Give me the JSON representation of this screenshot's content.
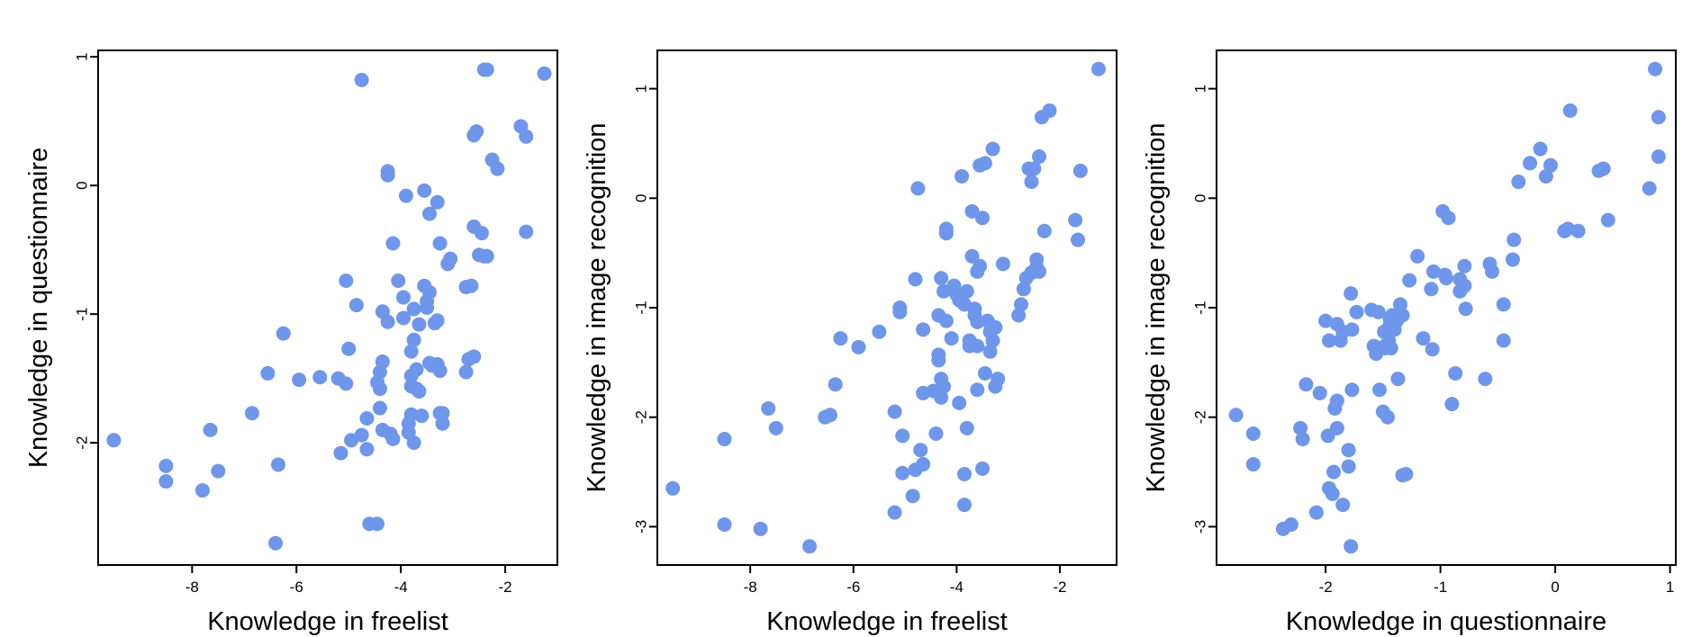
{
  "chart_data": [
    {
      "type": "scatter",
      "xlabel": "Knowledge in freelist",
      "ylabel": "Knowledge in questionnaire",
      "xlim": [
        -9.8,
        -1.0
      ],
      "ylim": [
        -2.95,
        1.05
      ],
      "xticks": [
        -8,
        -6,
        -4,
        -2
      ],
      "yticks": [
        -2,
        -1,
        0,
        1
      ],
      "point_color": "#6E96EB",
      "points": [
        [
          -9.5,
          -1.98
        ],
        [
          -8.5,
          -2.18
        ],
        [
          -8.5,
          -2.3
        ],
        [
          -7.8,
          -2.37
        ],
        [
          -7.65,
          -1.9
        ],
        [
          -7.5,
          -2.22
        ],
        [
          -6.85,
          -1.77
        ],
        [
          -6.55,
          -1.46
        ],
        [
          -6.4,
          -2.78
        ],
        [
          -6.35,
          -2.17
        ],
        [
          -6.25,
          -1.15
        ],
        [
          -5.95,
          -1.51
        ],
        [
          -5.55,
          -1.49
        ],
        [
          -5.2,
          -1.5
        ],
        [
          -5.15,
          -2.08
        ],
        [
          -5.05,
          -1.54
        ],
        [
          -5.05,
          -0.74
        ],
        [
          -5.0,
          -1.27
        ],
        [
          -4.95,
          -1.98
        ],
        [
          -4.85,
          -0.93
        ],
        [
          -4.75,
          -1.94
        ],
        [
          -4.75,
          0.82
        ],
        [
          -4.65,
          -2.05
        ],
        [
          -4.65,
          -1.81
        ],
        [
          -4.6,
          -2.63
        ],
        [
          -4.45,
          -2.63
        ],
        [
          -4.45,
          -1.53
        ],
        [
          -4.4,
          -1.45
        ],
        [
          -4.4,
          -1.73
        ],
        [
          -4.4,
          -1.58
        ],
        [
          -4.35,
          -0.98
        ],
        [
          -4.35,
          -1.37
        ],
        [
          -4.35,
          -1.9
        ],
        [
          -4.25,
          -1.06
        ],
        [
          -4.25,
          0.08
        ],
        [
          -4.25,
          0.11
        ],
        [
          -4.2,
          -1.93
        ],
        [
          -4.15,
          -0.45
        ],
        [
          -4.15,
          -1.97
        ],
        [
          -4.05,
          -0.74
        ],
        [
          -3.95,
          -1.03
        ],
        [
          -3.95,
          -0.87
        ],
        [
          -3.9,
          -0.08
        ],
        [
          -3.85,
          -1.85
        ],
        [
          -3.85,
          -1.92
        ],
        [
          -3.8,
          -1.78
        ],
        [
          -3.8,
          -1.29
        ],
        [
          -3.8,
          -1.56
        ],
        [
          -3.8,
          -1.48
        ],
        [
          -3.75,
          -0.96
        ],
        [
          -3.75,
          -1.2
        ],
        [
          -3.75,
          -2.0
        ],
        [
          -3.7,
          -1.43
        ],
        [
          -3.7,
          -1.58
        ],
        [
          -3.65,
          -1.6
        ],
        [
          -3.65,
          -1.08
        ],
        [
          -3.6,
          -1.79
        ],
        [
          -3.55,
          -0.04
        ],
        [
          -3.55,
          -0.78
        ],
        [
          -3.5,
          -0.9
        ],
        [
          -3.5,
          -0.95
        ],
        [
          -3.45,
          -1.38
        ],
        [
          -3.45,
          -0.83
        ],
        [
          -3.45,
          -0.22
        ],
        [
          -3.4,
          -1.4
        ],
        [
          -3.35,
          -1.07
        ],
        [
          -3.3,
          -1.05
        ],
        [
          -3.3,
          -0.13
        ],
        [
          -3.3,
          -1.39
        ],
        [
          -3.25,
          -0.45
        ],
        [
          -3.25,
          -1.44
        ],
        [
          -3.25,
          -1.77
        ],
        [
          -3.2,
          -1.85
        ],
        [
          -3.2,
          -1.77
        ],
        [
          -3.1,
          -0.61
        ],
        [
          -3.05,
          -0.57
        ],
        [
          -2.75,
          -0.79
        ],
        [
          -2.75,
          -1.45
        ],
        [
          -2.7,
          -1.35
        ],
        [
          -2.65,
          -0.78
        ],
        [
          -2.6,
          -1.33
        ],
        [
          -2.6,
          -0.32
        ],
        [
          -2.6,
          0.39
        ],
        [
          -2.55,
          0.42
        ],
        [
          -2.5,
          -0.54
        ],
        [
          -2.45,
          -0.37
        ],
        [
          -2.4,
          -0.55
        ],
        [
          -2.4,
          0.9
        ],
        [
          -2.35,
          -0.55
        ],
        [
          -2.35,
          0.9
        ],
        [
          -2.25,
          0.2
        ],
        [
          -2.15,
          0.13
        ],
        [
          -1.7,
          0.46
        ],
        [
          -1.6,
          0.38
        ],
        [
          -1.6,
          -0.36
        ],
        [
          -1.25,
          0.87
        ]
      ]
    },
    {
      "type": "scatter",
      "xlabel": "Knowledge in freelist",
      "ylabel": "Knowledge in image recognition",
      "xlim": [
        -9.8,
        -0.9
      ],
      "ylim": [
        -3.35,
        1.35
      ],
      "xticks": [
        -8,
        -6,
        -4,
        -2
      ],
      "yticks": [
        -3,
        -2,
        -1,
        0,
        1
      ],
      "point_color": "#6E96EB",
      "points": [
        [
          -9.5,
          -2.65
        ],
        [
          -8.5,
          -2.98
        ],
        [
          -8.5,
          -2.2
        ],
        [
          -7.8,
          -3.02
        ],
        [
          -7.65,
          -1.92
        ],
        [
          -7.5,
          -2.1
        ],
        [
          -6.85,
          -3.18
        ],
        [
          -6.55,
          -2.0
        ],
        [
          -6.45,
          -1.98
        ],
        [
          -6.35,
          -1.7
        ],
        [
          -6.25,
          -1.28
        ],
        [
          -5.9,
          -1.36
        ],
        [
          -5.5,
          -1.22
        ],
        [
          -5.2,
          -1.95
        ],
        [
          -5.2,
          -2.87
        ],
        [
          -5.1,
          -1.0
        ],
        [
          -5.1,
          -1.04
        ],
        [
          -5.05,
          -2.51
        ],
        [
          -5.05,
          -2.17
        ],
        [
          -4.85,
          -2.72
        ],
        [
          -4.8,
          -2.48
        ],
        [
          -4.8,
          -0.74
        ],
        [
          -4.75,
          0.09
        ],
        [
          -4.7,
          -2.3
        ],
        [
          -4.65,
          -2.43
        ],
        [
          -4.65,
          -1.78
        ],
        [
          -4.65,
          -1.2
        ],
        [
          -4.45,
          -1.76
        ],
        [
          -4.4,
          -2.15
        ],
        [
          -4.35,
          -1.07
        ],
        [
          -4.35,
          -1.43
        ],
        [
          -4.35,
          -1.48
        ],
        [
          -4.3,
          -1.65
        ],
        [
          -4.3,
          -1.82
        ],
        [
          -4.3,
          -0.73
        ],
        [
          -4.25,
          -1.72
        ],
        [
          -4.25,
          -0.85
        ],
        [
          -4.2,
          -0.28
        ],
        [
          -4.2,
          -0.32
        ],
        [
          -4.2,
          -1.12
        ],
        [
          -4.1,
          -1.28
        ],
        [
          -4.05,
          -0.8
        ],
        [
          -4.0,
          -0.88
        ],
        [
          -3.95,
          -1.87
        ],
        [
          -3.95,
          -0.93
        ],
        [
          -3.9,
          0.2
        ],
        [
          -3.85,
          -0.97
        ],
        [
          -3.85,
          -2.8
        ],
        [
          -3.85,
          -2.52
        ],
        [
          -3.8,
          -2.1
        ],
        [
          -3.8,
          -0.85
        ],
        [
          -3.75,
          -1.35
        ],
        [
          -3.75,
          -1.3
        ],
        [
          -3.7,
          -0.12
        ],
        [
          -3.7,
          -0.53
        ],
        [
          -3.65,
          -1.01
        ],
        [
          -3.65,
          -1.07
        ],
        [
          -3.6,
          -1.13
        ],
        [
          -3.6,
          -1.35
        ],
        [
          -3.6,
          -1.75
        ],
        [
          -3.6,
          -0.67
        ],
        [
          -3.55,
          0.3
        ],
        [
          -3.55,
          -0.62
        ],
        [
          -3.5,
          -2.47
        ],
        [
          -3.5,
          -0.18
        ],
        [
          -3.45,
          -1.6
        ],
        [
          -3.45,
          0.32
        ],
        [
          -3.4,
          -1.12
        ],
        [
          -3.35,
          -1.4
        ],
        [
          -3.35,
          -1.22
        ],
        [
          -3.3,
          -1.3
        ],
        [
          -3.3,
          0.45
        ],
        [
          -3.25,
          -1.18
        ],
        [
          -3.25,
          -1.72
        ],
        [
          -3.2,
          -1.65
        ],
        [
          -3.1,
          -0.6
        ],
        [
          -2.8,
          -1.07
        ],
        [
          -2.75,
          -0.97
        ],
        [
          -2.7,
          -0.83
        ],
        [
          -2.65,
          -0.73
        ],
        [
          -2.6,
          0.27
        ],
        [
          -2.55,
          0.15
        ],
        [
          -2.55,
          -0.68
        ],
        [
          -2.5,
          0.27
        ],
        [
          -2.45,
          -0.63
        ],
        [
          -2.45,
          -0.56
        ],
        [
          -2.4,
          -0.67
        ],
        [
          -2.4,
          0.38
        ],
        [
          -2.35,
          0.74
        ],
        [
          -2.3,
          -0.3
        ],
        [
          -2.2,
          0.8
        ],
        [
          -1.7,
          -0.2
        ],
        [
          -1.65,
          -0.38
        ],
        [
          -1.6,
          0.25
        ],
        [
          -1.25,
          1.18
        ]
      ]
    },
    {
      "type": "scatter",
      "xlabel": "Knowledge in questionnaire",
      "ylabel": "Knowledge in image recognition",
      "xlim": [
        -2.95,
        1.05
      ],
      "ylim": [
        -3.35,
        1.35
      ],
      "xticks": [
        -2,
        -1,
        0,
        1
      ],
      "yticks": [
        -3,
        -2,
        -1,
        0,
        1
      ],
      "point_color": "#6E96EB",
      "points": [
        [
          -2.78,
          -1.98
        ],
        [
          -2.63,
          -2.15
        ],
        [
          -2.63,
          -2.43
        ],
        [
          -2.37,
          -3.02
        ],
        [
          -2.3,
          -2.98
        ],
        [
          -2.22,
          -2.1
        ],
        [
          -2.2,
          -2.2
        ],
        [
          -2.17,
          -1.7
        ],
        [
          -2.08,
          -2.87
        ],
        [
          -2.05,
          -1.78
        ],
        [
          -2.0,
          -1.12
        ],
        [
          -1.98,
          -2.17
        ],
        [
          -1.97,
          -2.65
        ],
        [
          -1.97,
          -1.3
        ],
        [
          -1.94,
          -2.7
        ],
        [
          -1.93,
          -2.5
        ],
        [
          -1.92,
          -1.92
        ],
        [
          -1.9,
          -1.85
        ],
        [
          -1.9,
          -2.1
        ],
        [
          -1.9,
          -1.15
        ],
        [
          -1.87,
          -1.3
        ],
        [
          -1.85,
          -2.8
        ],
        [
          -1.85,
          -1.22
        ],
        [
          -1.8,
          -2.3
        ],
        [
          -1.8,
          -2.45
        ],
        [
          -1.78,
          -0.87
        ],
        [
          -1.78,
          -3.18
        ],
        [
          -1.77,
          -1.75
        ],
        [
          -1.77,
          -1.2
        ],
        [
          -1.73,
          -1.04
        ],
        [
          -1.6,
          -1.02
        ],
        [
          -1.58,
          -1.35
        ],
        [
          -1.56,
          -1.42
        ],
        [
          -1.54,
          -1.04
        ],
        [
          -1.53,
          -1.75
        ],
        [
          -1.5,
          -1.36
        ],
        [
          -1.5,
          -1.95
        ],
        [
          -1.49,
          -1.22
        ],
        [
          -1.48,
          -1.37
        ],
        [
          -1.46,
          -2.0
        ],
        [
          -1.45,
          -1.3
        ],
        [
          -1.44,
          -1.1
        ],
        [
          -1.44,
          -1.15
        ],
        [
          -1.43,
          -1.37
        ],
        [
          -1.42,
          -1.07
        ],
        [
          -1.4,
          -1.2
        ],
        [
          -1.38,
          -1.12
        ],
        [
          -1.37,
          -1.65
        ],
        [
          -1.35,
          -0.97
        ],
        [
          -1.33,
          -1.07
        ],
        [
          -1.33,
          -2.53
        ],
        [
          -1.3,
          -2.52
        ],
        [
          -1.27,
          -0.75
        ],
        [
          -1.2,
          -0.53
        ],
        [
          -1.15,
          -1.28
        ],
        [
          -1.08,
          -0.83
        ],
        [
          -1.07,
          -1.38
        ],
        [
          -1.06,
          -0.67
        ],
        [
          -0.98,
          -0.12
        ],
        [
          -0.96,
          -0.7
        ],
        [
          -0.95,
          -0.73
        ],
        [
          -0.93,
          -0.18
        ],
        [
          -0.9,
          -1.88
        ],
        [
          -0.87,
          -1.6
        ],
        [
          -0.83,
          -0.85
        ],
        [
          -0.83,
          -0.74
        ],
        [
          -0.79,
          -0.62
        ],
        [
          -0.79,
          -0.8
        ],
        [
          -0.78,
          -1.01
        ],
        [
          -0.61,
          -1.65
        ],
        [
          -0.57,
          -0.6
        ],
        [
          -0.55,
          -0.67
        ],
        [
          -0.45,
          -0.97
        ],
        [
          -0.45,
          -1.3
        ],
        [
          -0.37,
          -0.56
        ],
        [
          -0.36,
          -0.38
        ],
        [
          -0.32,
          0.15
        ],
        [
          -0.22,
          0.32
        ],
        [
          -0.13,
          0.45
        ],
        [
          -0.08,
          0.2
        ],
        [
          -0.04,
          0.3
        ],
        [
          0.08,
          -0.3
        ],
        [
          0.11,
          -0.28
        ],
        [
          0.13,
          0.8
        ],
        [
          0.2,
          -0.3
        ],
        [
          0.38,
          0.25
        ],
        [
          0.42,
          0.27
        ],
        [
          0.46,
          -0.2
        ],
        [
          0.82,
          0.09
        ],
        [
          0.87,
          1.18
        ],
        [
          0.9,
          0.38
        ],
        [
          0.9,
          0.74
        ]
      ]
    }
  ]
}
